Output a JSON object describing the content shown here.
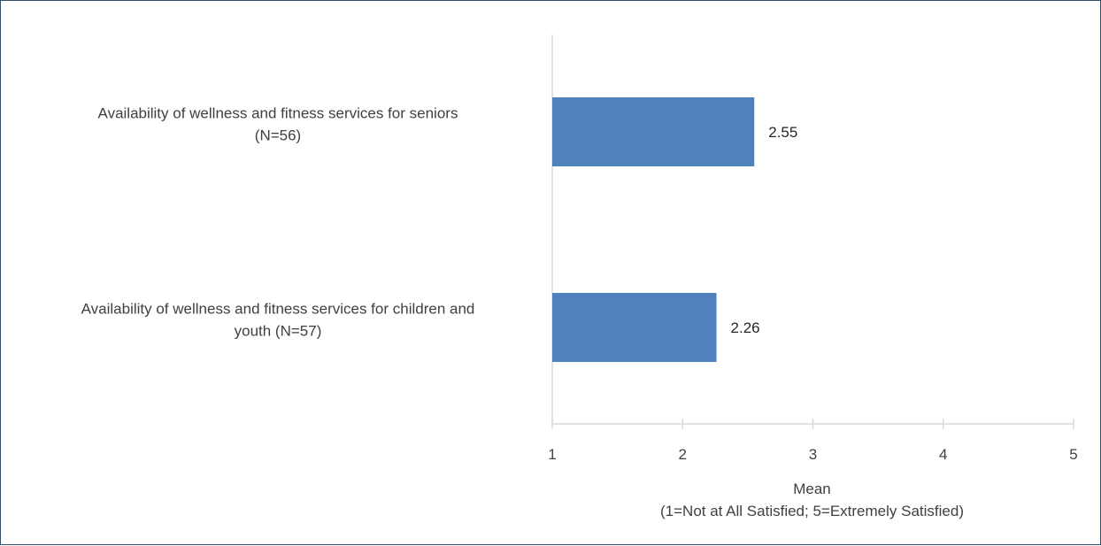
{
  "chart_data": {
    "type": "bar",
    "orientation": "horizontal",
    "categories": [
      [
        "Availability of wellness and fitness services for seniors",
        "(N=56)"
      ],
      [
        "Availability of wellness and fitness services for children and",
        "youth (N=57)"
      ]
    ],
    "values": [
      2.55,
      2.26
    ],
    "data_labels": [
      "2.55",
      "2.26"
    ],
    "xlabel": [
      "Mean",
      "(1=Not at All Satisfied; 5=Extremely Satisfied)"
    ],
    "xlim": [
      1,
      5
    ],
    "xticks": [
      1,
      2,
      3,
      4,
      5
    ],
    "grid": false,
    "legend": "none",
    "colors": {
      "bar": "#4f81bd",
      "axis": "#d9d9d9",
      "border": "#2f4f6f"
    }
  }
}
